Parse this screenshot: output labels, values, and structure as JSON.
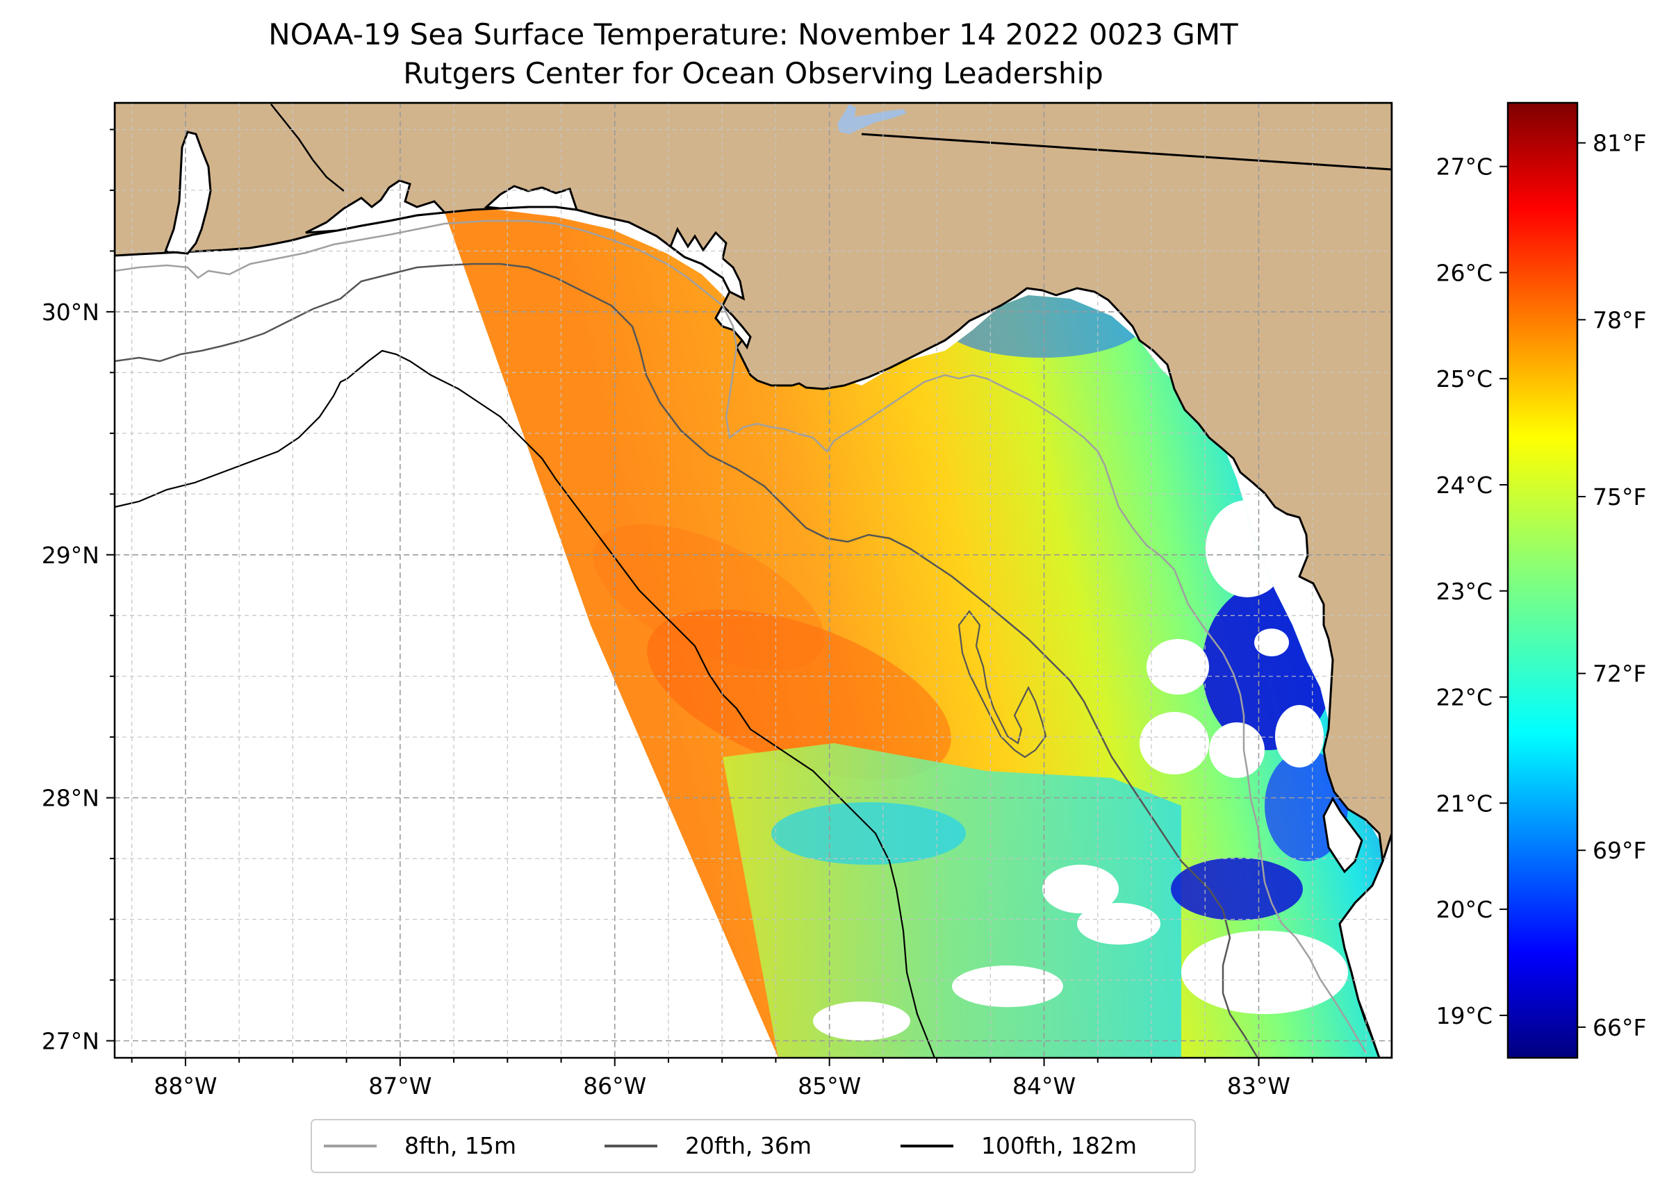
{
  "title": {
    "line1": "NOAA-19 Sea Surface Temperature: November 14 2022 0023 GMT",
    "line2": "Rutgers Center for Ocean Observing Leadership"
  },
  "map": {
    "lon_range": [
      -88.33,
      -82.38
    ],
    "lat_range": [
      26.93,
      30.86
    ],
    "x_ticks": [
      {
        "value": -88,
        "label": "88°W"
      },
      {
        "value": -87,
        "label": "87°W"
      },
      {
        "value": -86,
        "label": "86°W"
      },
      {
        "value": -85,
        "label": "85°W"
      },
      {
        "value": -84,
        "label": "84°W"
      },
      {
        "value": -83,
        "label": "83°W"
      }
    ],
    "y_ticks": [
      {
        "value": 27,
        "label": "27°N"
      },
      {
        "value": 28,
        "label": "28°N"
      },
      {
        "value": 29,
        "label": "29°N"
      },
      {
        "value": 30,
        "label": "30°N"
      }
    ],
    "colors": {
      "land": "#d2b48c",
      "ocean_no_data": "#ffffff",
      "lake": "#a4bfe0",
      "contour_8fth": "#a0a0a0",
      "contour_20fth": "#555555",
      "contour_100fth": "#000000"
    }
  },
  "legend": {
    "items": [
      {
        "label": "8fth, 15m",
        "color": "#a0a0a0"
      },
      {
        "label": "20fth, 36m",
        "color": "#555555"
      },
      {
        "label": "100fth, 182m",
        "color": "#000000"
      }
    ]
  },
  "colorbar": {
    "colormap": "jet",
    "range_c": [
      18.6,
      27.6
    ],
    "celsius_ticks": [
      {
        "value": 19,
        "label": "19°C"
      },
      {
        "value": 20,
        "label": "20°C"
      },
      {
        "value": 21,
        "label": "21°C"
      },
      {
        "value": 22,
        "label": "22°C"
      },
      {
        "value": 23,
        "label": "23°C"
      },
      {
        "value": 24,
        "label": "24°C"
      },
      {
        "value": 25,
        "label": "25°C"
      },
      {
        "value": 26,
        "label": "26°C"
      },
      {
        "value": 27,
        "label": "27°C"
      }
    ],
    "fahrenheit_ticks": [
      {
        "value": 66,
        "label": "66°F"
      },
      {
        "value": 69,
        "label": "69°F"
      },
      {
        "value": 72,
        "label": "72°F"
      },
      {
        "value": 75,
        "label": "75°F"
      },
      {
        "value": 78,
        "label": "78°F"
      },
      {
        "value": 81,
        "label": "81°F"
      }
    ]
  }
}
